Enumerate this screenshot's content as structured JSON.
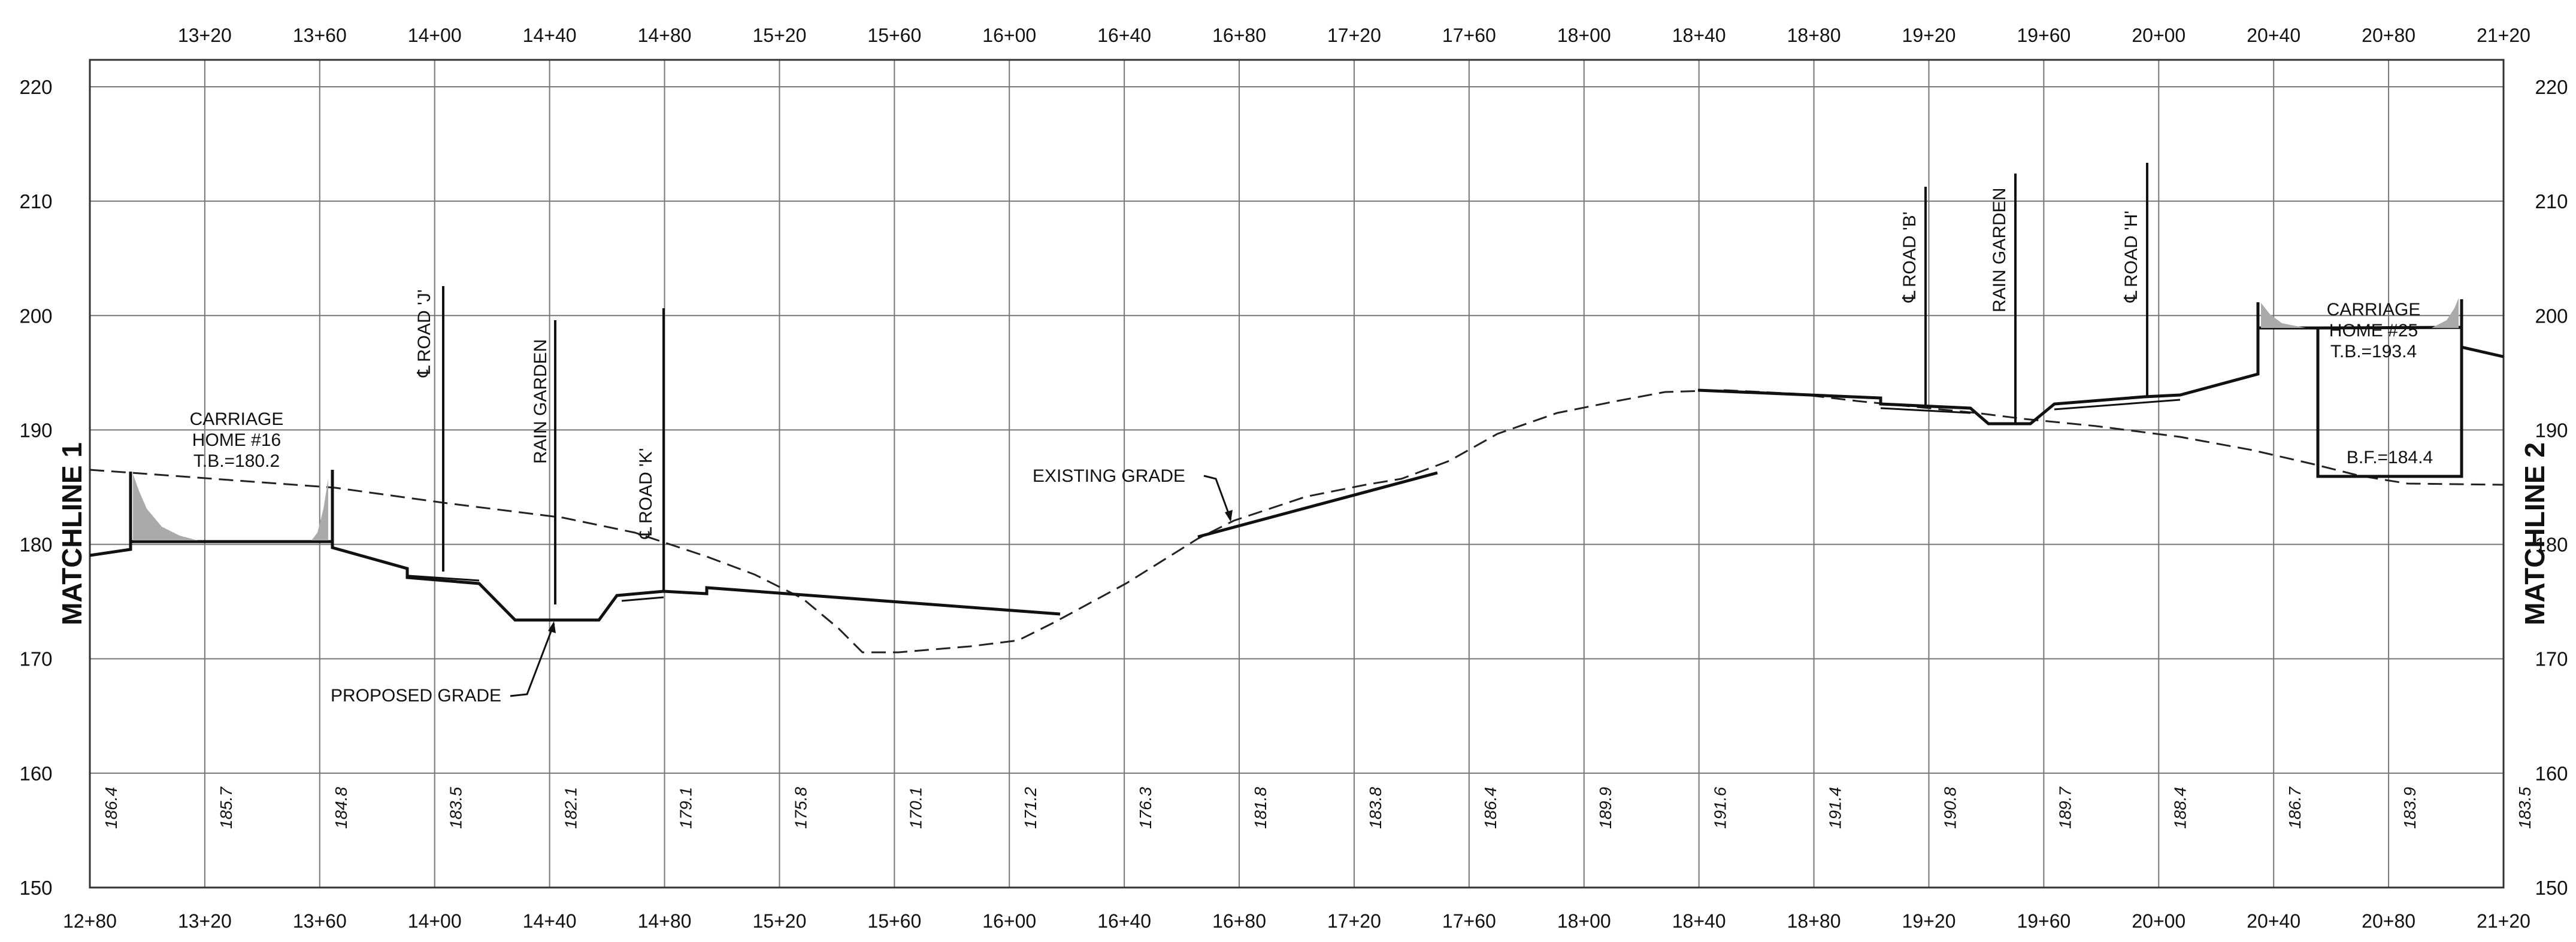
{
  "x_axis": {
    "top_labels": [
      "13+20",
      "13+60",
      "14+00",
      "14+40",
      "14+80",
      "15+20",
      "15+60",
      "16+00",
      "16+40",
      "16+80",
      "17+20",
      "17+60",
      "18+00",
      "18+40",
      "18+80",
      "19+20",
      "19+60",
      "20+00",
      "20+40",
      "20+80",
      "21+20"
    ],
    "bottom_labels": [
      "12+80",
      "13+20",
      "13+60",
      "14+00",
      "14+40",
      "14+80",
      "15+20",
      "15+60",
      "16+00",
      "16+40",
      "16+80",
      "17+20",
      "17+60",
      "18+00",
      "18+40",
      "18+80",
      "19+20",
      "19+60",
      "20+00",
      "20+40",
      "20+80",
      "21+20"
    ]
  },
  "y_axis": {
    "left_labels": [
      "220",
      "210",
      "200",
      "190",
      "180",
      "170",
      "160",
      "150"
    ],
    "right_labels": [
      "220",
      "210",
      "200",
      "190",
      "180",
      "170",
      "160",
      "150"
    ]
  },
  "grade_elevations": [
    "186.4",
    "185.7",
    "184.8",
    "183.5",
    "182.1",
    "179.1",
    "175.8",
    "170.1",
    "171.2",
    "176.3",
    "181.8",
    "183.8",
    "186.4",
    "189.9",
    "191.6",
    "191.4",
    "190.8",
    "189.7",
    "188.4",
    "186.7",
    "183.9",
    "183.5"
  ],
  "matchlines": {
    "left": "MATCHLINE 1",
    "right": "MATCHLINE 2"
  },
  "centerlines": [
    {
      "symbol": "℄",
      "label": "ROAD 'J'"
    },
    {
      "label": "RAIN GARDEN"
    },
    {
      "symbol": "℄",
      "label": "ROAD 'K'"
    },
    {
      "symbol": "℄",
      "label": "ROAD 'B'"
    },
    {
      "label": "RAIN GARDEN"
    },
    {
      "symbol": "℄",
      "label": "ROAD 'H'"
    }
  ],
  "callouts": {
    "carriage_home_16": [
      "CARRIAGE",
      "HOME #16",
      "T.B.=180.2"
    ],
    "carriage_home_25": [
      "CARRIAGE",
      "HOME #25",
      "T.B.=193.4"
    ],
    "basement_floor": "B.F.=184.4",
    "existing_grade": "EXISTING GRADE",
    "proposed_grade": "PROPOSED GRADE"
  }
}
